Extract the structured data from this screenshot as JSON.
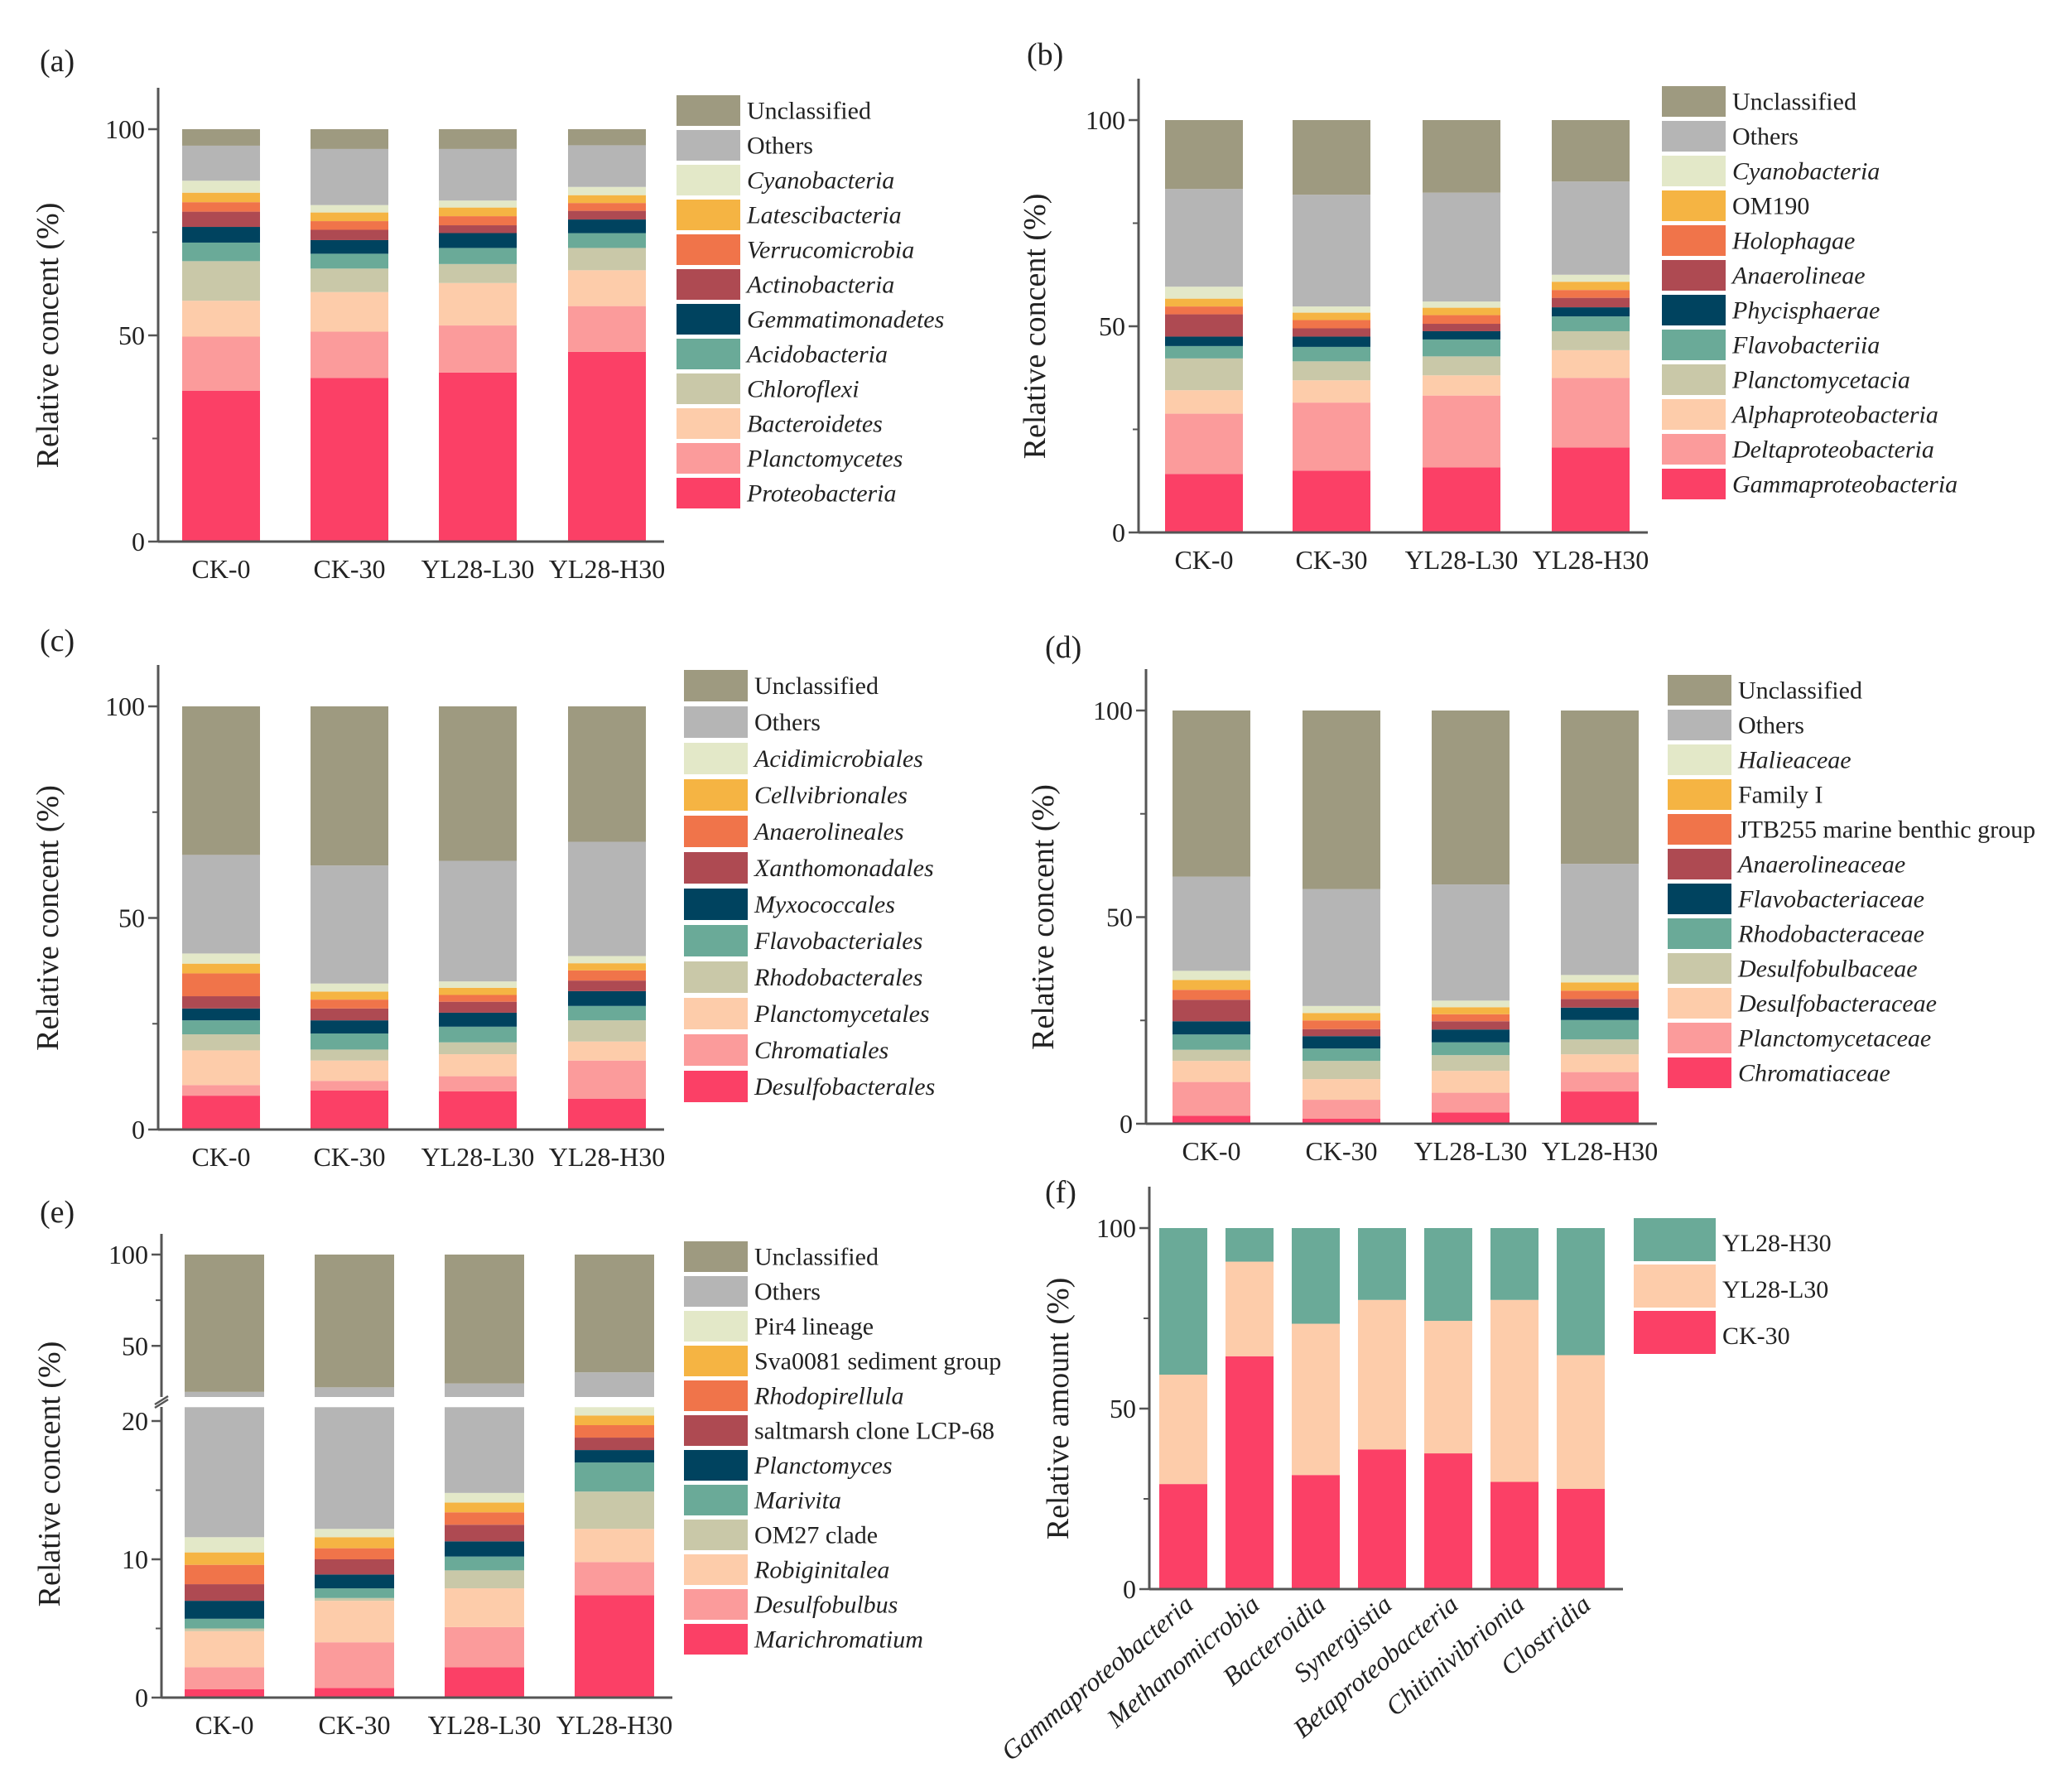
{
  "chart_data": [
    {
      "panel_label": "(a)",
      "type": "bar",
      "stacked": true,
      "ylabel": "Relative concent (%)",
      "ylim": [
        0,
        100
      ],
      "yticks": [
        0,
        50,
        100
      ],
      "categories": [
        "CK-0",
        "CK-30",
        "YL28-L30",
        "YL28-H30"
      ],
      "legend": "right",
      "series": [
        {
          "name": "Proteobacteria",
          "italic": true,
          "color": "#fb4066",
          "values": [
            36.6,
            39.7,
            41.0,
            46.0
          ]
        },
        {
          "name": "Planctomycetes",
          "italic": true,
          "color": "#fb9b9b",
          "values": [
            13.1,
            11.2,
            11.4,
            11.1
          ]
        },
        {
          "name": "Bacteroidetes",
          "italic": true,
          "color": "#fdccaa",
          "values": [
            8.7,
            9.6,
            10.3,
            8.7
          ]
        },
        {
          "name": "Chloroflexi",
          "italic": true,
          "color": "#c9c8a8",
          "values": [
            9.6,
            5.7,
            4.6,
            5.4
          ]
        },
        {
          "name": "Acidobacteria",
          "italic": true,
          "color": "#6aaa98",
          "values": [
            4.5,
            3.6,
            3.9,
            3.6
          ]
        },
        {
          "name": "Gemmatimonadetes",
          "italic": true,
          "color": "#00435f",
          "values": [
            3.8,
            3.3,
            3.6,
            3.3
          ]
        },
        {
          "name": "Actinobacteria",
          "italic": true,
          "color": "#ae4a52",
          "values": [
            3.7,
            2.5,
            1.9,
            2.1
          ]
        },
        {
          "name": "Verrucomicrobia",
          "italic": true,
          "color": "#f0744a",
          "values": [
            2.3,
            2.1,
            2.2,
            1.9
          ]
        },
        {
          "name": "Latescibacteria",
          "italic": true,
          "color": "#f5b443",
          "values": [
            2.3,
            2.1,
            2.1,
            1.9
          ]
        },
        {
          "name": "Cyanobacteria",
          "italic": true,
          "color": "#e3e8c8",
          "values": [
            2.9,
            1.8,
            1.7,
            2.0
          ]
        },
        {
          "name": "Others",
          "italic": false,
          "color": "#b5b5b5",
          "values": [
            8.5,
            13.6,
            12.5,
            10.1
          ]
        },
        {
          "name": "Unclassified",
          "italic": false,
          "color": "#9e9a80",
          "values": [
            4.0,
            4.8,
            4.8,
            3.9
          ]
        }
      ]
    },
    {
      "panel_label": "(b)",
      "type": "bar",
      "stacked": true,
      "ylabel": "Relative concent (%)",
      "ylim": [
        0,
        100
      ],
      "yticks": [
        0,
        50,
        100
      ],
      "categories": [
        "CK-0",
        "CK-30",
        "YL28-L30",
        "YL28-H30"
      ],
      "legend": "right",
      "series": [
        {
          "name": "Gammaproteobacteria",
          "italic": true,
          "color": "#fb4066",
          "values": [
            14.2,
            15.0,
            15.8,
            20.6
          ]
        },
        {
          "name": "Deltaproteobacteria",
          "italic": true,
          "color": "#fb9b9b",
          "values": [
            14.6,
            16.5,
            17.4,
            16.9
          ]
        },
        {
          "name": "Alphaproteobacteria",
          "italic": true,
          "color": "#fdccaa",
          "values": [
            5.7,
            5.4,
            4.9,
            6.7
          ]
        },
        {
          "name": "Planctomycetacia",
          "italic": true,
          "color": "#c9c8a8",
          "values": [
            7.7,
            4.6,
            4.6,
            4.6
          ]
        },
        {
          "name": "Flavobacteriia",
          "italic": true,
          "color": "#6aaa98",
          "values": [
            3.0,
            3.5,
            4.1,
            3.6
          ]
        },
        {
          "name": "Phycisphaerae",
          "italic": true,
          "color": "#00435f",
          "values": [
            2.3,
            2.5,
            2.0,
            2.2
          ]
        },
        {
          "name": "Anaerolineae",
          "italic": true,
          "color": "#ae4a52",
          "values": [
            5.4,
            2.0,
            1.8,
            2.3
          ]
        },
        {
          "name": "Holophagae",
          "italic": true,
          "color": "#f0744a",
          "values": [
            1.9,
            2.0,
            2.1,
            1.9
          ]
        },
        {
          "name": "OM190",
          "italic": false,
          "color": "#f5b443",
          "values": [
            1.9,
            1.8,
            1.8,
            2.0
          ]
        },
        {
          "name": "Cyanobacteria",
          "italic": true,
          "color": "#e3e8c8",
          "values": [
            2.9,
            1.5,
            1.5,
            1.7
          ]
        },
        {
          "name": "Others",
          "italic": false,
          "color": "#b5b5b5",
          "values": [
            23.7,
            27.1,
            26.4,
            22.6
          ]
        },
        {
          "name": "Unclassified",
          "italic": false,
          "color": "#9e9a80",
          "values": [
            16.7,
            18.1,
            17.6,
            14.9
          ]
        }
      ]
    },
    {
      "panel_label": "(c)",
      "type": "bar",
      "stacked": true,
      "ylabel": "Relative concent (%)",
      "ylim": [
        0,
        100
      ],
      "yticks": [
        0,
        50,
        100
      ],
      "categories": [
        "CK-0",
        "CK-30",
        "YL28-L30",
        "YL28-H30"
      ],
      "legend": "right",
      "series": [
        {
          "name": "Desulfobacterales",
          "italic": true,
          "color": "#fb4066",
          "values": [
            8.0,
            9.2,
            9.0,
            7.3
          ]
        },
        {
          "name": "Chromatiales",
          "italic": true,
          "color": "#fb9b9b",
          "values": [
            2.5,
            2.3,
            3.6,
            9.0
          ]
        },
        {
          "name": "Planctomycetales",
          "italic": true,
          "color": "#fdccaa",
          "values": [
            8.2,
            4.8,
            5.2,
            4.5
          ]
        },
        {
          "name": "Rhodobacterales",
          "italic": true,
          "color": "#c9c8a8",
          "values": [
            3.8,
            2.6,
            2.8,
            5.0
          ]
        },
        {
          "name": "Flavobacteriales",
          "italic": true,
          "color": "#6aaa98",
          "values": [
            3.3,
            3.8,
            3.7,
            3.4
          ]
        },
        {
          "name": "Myxococcales",
          "italic": true,
          "color": "#00435f",
          "values": [
            2.8,
            3.1,
            3.3,
            3.5
          ]
        },
        {
          "name": "Xanthomonadales",
          "italic": true,
          "color": "#ae4a52",
          "values": [
            2.9,
            2.8,
            2.6,
            2.5
          ]
        },
        {
          "name": "Anaerolineales",
          "italic": true,
          "color": "#f0744a",
          "values": [
            5.4,
            2.1,
            1.6,
            2.4
          ]
        },
        {
          "name": "Cellvibrionales",
          "italic": true,
          "color": "#f5b443",
          "values": [
            2.3,
            1.9,
            1.7,
            1.7
          ]
        },
        {
          "name": "Acidimicrobiales",
          "italic": true,
          "color": "#e3e8c8",
          "values": [
            2.4,
            1.9,
            1.5,
            1.7
          ]
        },
        {
          "name": "Others",
          "italic": false,
          "color": "#b5b5b5",
          "values": [
            23.3,
            27.9,
            28.5,
            27.0
          ]
        },
        {
          "name": "Unclassified",
          "italic": false,
          "color": "#9e9a80",
          "values": [
            35.1,
            37.6,
            36.5,
            32.0
          ]
        }
      ]
    },
    {
      "panel_label": "(d)",
      "type": "bar",
      "stacked": true,
      "ylabel": "Relative concent (%)",
      "ylim": [
        0,
        100
      ],
      "yticks": [
        0,
        50,
        100
      ],
      "categories": [
        "CK-0",
        "CK-30",
        "YL28-L30",
        "YL28-H30"
      ],
      "legend": "right",
      "series": [
        {
          "name": "Chromatiaceae",
          "italic": true,
          "color": "#fb4066",
          "values": [
            1.9,
            1.2,
            2.7,
            7.8
          ]
        },
        {
          "name": "Planctomycetaceae",
          "italic": true,
          "color": "#fb9b9b",
          "values": [
            8.2,
            4.6,
            4.8,
            4.7
          ]
        },
        {
          "name": "Desulfobacteraceae",
          "italic": true,
          "color": "#fdccaa",
          "values": [
            5.1,
            5.0,
            5.3,
            4.3
          ]
        },
        {
          "name": "Desulfobulbaceae",
          "italic": true,
          "color": "#c9c8a8",
          "values": [
            2.7,
            4.4,
            3.8,
            3.6
          ]
        },
        {
          "name": "Rhodobacteraceae",
          "italic": true,
          "color": "#6aaa98",
          "values": [
            3.7,
            3.0,
            3.1,
            4.7
          ]
        },
        {
          "name": "Flavobacteriaceae",
          "italic": true,
          "color": "#00435f",
          "values": [
            3.2,
            3.0,
            3.1,
            3.0
          ]
        },
        {
          "name": "Anaerolineaceae",
          "italic": true,
          "color": "#ae4a52",
          "values": [
            5.2,
            1.7,
            2.0,
            2.1
          ]
        },
        {
          "name": "JTB255 marine benthic group",
          "italic": false,
          "color": "#f0744a",
          "values": [
            2.4,
            2.1,
            1.7,
            2.0
          ]
        },
        {
          "name": "Family I",
          "italic": false,
          "color": "#f5b443",
          "values": [
            2.4,
            1.8,
            1.7,
            2.0
          ]
        },
        {
          "name": "Halieaceae",
          "italic": true,
          "color": "#e3e8c8",
          "values": [
            2.2,
            1.7,
            1.6,
            1.8
          ]
        },
        {
          "name": "Others",
          "italic": false,
          "color": "#b5b5b5",
          "values": [
            22.8,
            28.3,
            28.1,
            26.9
          ]
        },
        {
          "name": "Unclassified",
          "italic": false,
          "color": "#9e9a80",
          "values": [
            40.2,
            43.2,
            42.1,
            37.1
          ]
        }
      ]
    },
    {
      "panel_label": "(e)",
      "type": "bar",
      "stacked": true,
      "ylabel": "Relative concent (%)",
      "ylim": [
        0,
        100
      ],
      "axis_break": [
        21,
        22
      ],
      "yticks": [
        0,
        10,
        20,
        50,
        100
      ],
      "categories": [
        "CK-0",
        "CK-30",
        "YL28-L30",
        "YL28-H30"
      ],
      "legend": "right",
      "series": [
        {
          "name": "Marichromatium",
          "italic": true,
          "color": "#fb4066",
          "values": [
            0.6,
            0.7,
            2.2,
            7.4
          ]
        },
        {
          "name": "Desulfobulbus",
          "italic": true,
          "color": "#fb9b9b",
          "values": [
            1.6,
            3.3,
            2.9,
            2.4
          ]
        },
        {
          "name": "Robiginitalea",
          "italic": true,
          "color": "#fdccaa",
          "values": [
            2.6,
            3.0,
            2.8,
            2.4
          ]
        },
        {
          "name": "OM27 clade",
          "italic": false,
          "color": "#c9c8a8",
          "values": [
            0.2,
            0.2,
            1.3,
            2.7
          ]
        },
        {
          "name": "Marivita",
          "italic": true,
          "color": "#6aaa98",
          "values": [
            0.7,
            0.7,
            1.0,
            2.1
          ]
        },
        {
          "name": "Planctomyces",
          "italic": true,
          "color": "#00435f",
          "values": [
            1.3,
            1.0,
            1.1,
            0.9
          ]
        },
        {
          "name": "saltmarsh clone LCP-68",
          "italic": false,
          "color": "#ae4a52",
          "values": [
            1.2,
            1.1,
            1.2,
            0.9
          ]
        },
        {
          "name": "Rhodopirellula",
          "italic": true,
          "color": "#f0744a",
          "values": [
            1.4,
            0.8,
            0.9,
            0.9
          ]
        },
        {
          "name": "Sva0081 sediment group",
          "italic": false,
          "color": "#f5b443",
          "values": [
            0.9,
            0.8,
            0.7,
            0.7
          ]
        },
        {
          "name": "Pir4 lineage",
          "italic": false,
          "color": "#e3e8c8",
          "values": [
            1.1,
            0.6,
            0.7,
            0.6
          ]
        },
        {
          "name": "Others",
          "italic": false,
          "color": "#b5b5b5",
          "values": [
            13.2,
            15.1,
            14.6,
            14.5
          ]
        },
        {
          "name": "Unclassified",
          "italic": false,
          "color": "#9e9a80",
          "values": [
            75.2,
            72.7,
            70.6,
            64.5
          ]
        }
      ]
    },
    {
      "panel_label": "(f)",
      "type": "bar",
      "stacked": true,
      "ylabel": "Relative amount (%)",
      "ylim": [
        0,
        100
      ],
      "yticks": [
        0,
        50,
        100
      ],
      "categories": [
        "Gammaproteobacteria",
        "Methanomicrobia",
        "Bacteroidia",
        "Synergistia",
        "Betaproteobacteria",
        "Chitinivibrionia",
        "Clostridia"
      ],
      "legend": "top-right",
      "series": [
        {
          "name": "CK-30",
          "italic": false,
          "color": "#fb4066",
          "values": [
            29.1,
            64.5,
            31.6,
            38.7,
            37.6,
            29.7,
            27.8
          ]
        },
        {
          "name": "YL28-L30",
          "italic": false,
          "color": "#fdccaa",
          "values": [
            30.3,
            26.2,
            41.9,
            41.4,
            36.7,
            50.4,
            37.0
          ]
        },
        {
          "name": "YL28-H30",
          "italic": false,
          "color": "#6aaa98",
          "values": [
            40.6,
            9.3,
            26.5,
            19.9,
            25.7,
            19.9,
            35.2
          ]
        }
      ]
    }
  ]
}
